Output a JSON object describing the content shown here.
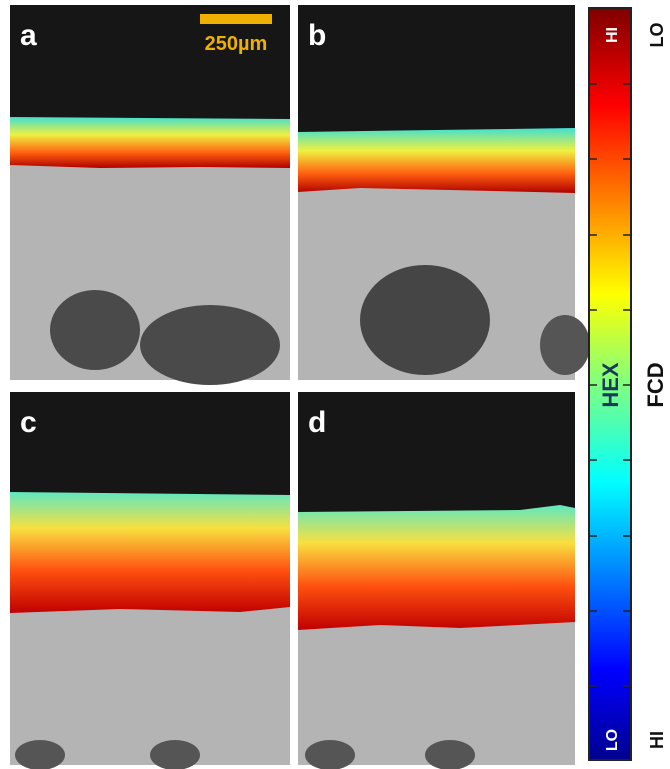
{
  "panels": [
    {
      "label": "a"
    },
    {
      "label": "b"
    },
    {
      "label": "c"
    },
    {
      "label": "d"
    }
  ],
  "scale_bar": {
    "label": "250µm"
  },
  "colorbar": {
    "hex_label": "HEX",
    "hex_high": "HI",
    "hex_low": "LO",
    "fcd_label": "FCD",
    "fcd_low": "LO",
    "fcd_high": "HI"
  }
}
